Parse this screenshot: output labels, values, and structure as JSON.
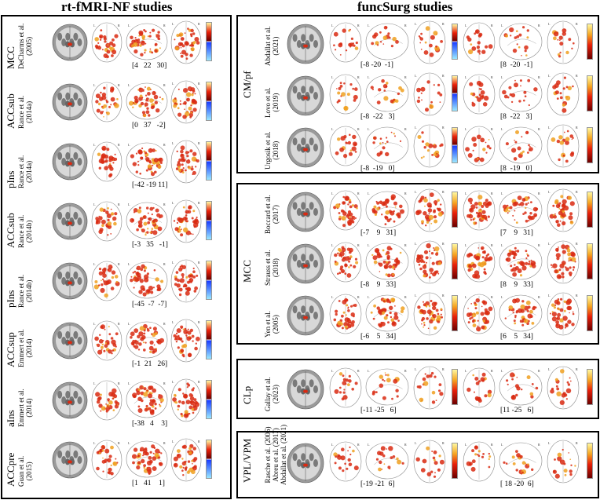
{
  "panels": {
    "left_title": "rt-fMRI-NF studies",
    "right_title": "funcSurg studies"
  },
  "left_rows": [
    {
      "region": "MCC",
      "study": [
        "DeCharms et al.",
        "(2005)"
      ],
      "coord": "[4   22   30]",
      "slice": "coronal",
      "cbar": "warm-cool"
    },
    {
      "region": "ACCsub",
      "study": [
        "Rance et al.",
        "(2014a)"
      ],
      "coord": "[0   37   -2]",
      "slice": "coronal",
      "cbar": "warm-cool"
    },
    {
      "region": "pIns",
      "study": [
        "Rance et al.",
        "(2014a)"
      ],
      "coord": "[-42 -19 11]",
      "slice": "axial",
      "cbar": "warm-cool"
    },
    {
      "region": "ACCsub",
      "study": [
        "Rance et al.",
        "(2014b)"
      ],
      "coord": "[-3   35   -1]",
      "slice": "coronal",
      "cbar": "warm-cool"
    },
    {
      "region": "pIns",
      "study": [
        "Rance et al.",
        "(2014b)"
      ],
      "coord": "[-45  -7  -7]",
      "slice": "coronal",
      "cbar": "warm-cool"
    },
    {
      "region": "ACCsup",
      "study": [
        "Emmert et al.",
        "(2014)"
      ],
      "coord": "[-1  21   26]",
      "slice": "coronal",
      "cbar": "warm-cool"
    },
    {
      "region": "aIns",
      "study": [
        "Emmert et al.",
        "(2014)"
      ],
      "coord": "[-38   4    3]",
      "slice": "coronal",
      "cbar": "warm-cool"
    },
    {
      "region": "ACCpre",
      "study": [
        "Guan et al.",
        "(2015)"
      ],
      "coord": "[1   41    1]",
      "slice": "axial",
      "cbar": "warm-cool"
    }
  ],
  "right_groups": [
    {
      "region": "CM/pf",
      "rows": [
        {
          "study": [
            "Abdallat et al.",
            "(2021)"
          ],
          "coords": [
            "[-8 -20  -1]",
            "[8  -20  -1]"
          ]
        },
        {
          "study": [
            "Lovo et al.",
            "(2019)"
          ],
          "coords": [
            "[-8  -22   3]",
            "[8  -22   3]"
          ]
        },
        {
          "study": [
            "Urgosik et al.",
            "(2018)"
          ],
          "coords": [
            "[-8  -19   0]",
            "[8  -19   0]"
          ]
        }
      ]
    },
    {
      "region": "MCC",
      "rows": [
        {
          "study": [
            "Boccard et al.",
            "(2017)"
          ],
          "coords": [
            "[-7    9   31]",
            "[7    9   31]"
          ]
        },
        {
          "study": [
            "Strauss et al.",
            "(2018)"
          ],
          "coords": [
            "[-8    9   33]",
            "[8    9   33]"
          ]
        },
        {
          "study": [
            "Yen et al.",
            "(2005)"
          ],
          "coords": [
            "[-6    5   34]",
            "[6    5   34]"
          ]
        }
      ]
    },
    {
      "region": "CLp",
      "rows": [
        {
          "study": [
            "Gallay et al.",
            "(2023)"
          ],
          "coords": [
            "[-11 -25   6]",
            "[11 -25   6]"
          ]
        }
      ]
    },
    {
      "region": "VPL/VPM",
      "rows": [
        {
          "study": [
            "Rasche et al. (2006)",
            "Abreu et al. (2017)",
            "Abdallat et al. (2021)"
          ],
          "coords": [
            "[-19 -21  6]",
            "[ 18 -20  6]"
          ]
        }
      ]
    }
  ],
  "colors": {
    "warm_top": "#fff7a0",
    "warm_mid": "#e8200a",
    "warm_bot": "#6b0000",
    "cool_top": "#1a3cff",
    "cool_bot": "#9ae8ff",
    "blob": "#d92a12",
    "blob_light": "#f0a020"
  }
}
